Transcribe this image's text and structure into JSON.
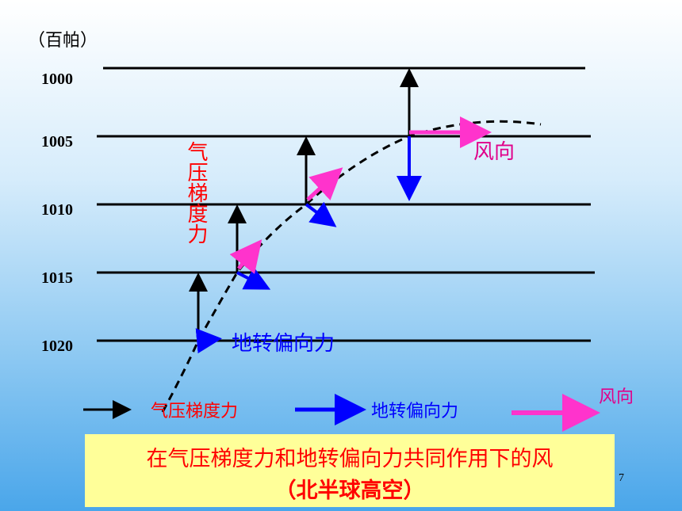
{
  "unit_label": "（百帕）",
  "isobars": [
    "1000",
    "1005",
    "1010",
    "1015",
    "1020"
  ],
  "labels": {
    "pressure_gradient_force": "气压梯度力",
    "wind_direction": "风向",
    "coriolis_force": "地转偏向力"
  },
  "legend": [
    {
      "label": "气压梯度力"
    },
    {
      "label": "地转偏向力"
    },
    {
      "label": "风向"
    }
  ],
  "caption": {
    "line1": "在气压梯度力和地转偏向力共同作用下的风",
    "line2": "（北半球高空）"
  },
  "page_number": "7"
}
